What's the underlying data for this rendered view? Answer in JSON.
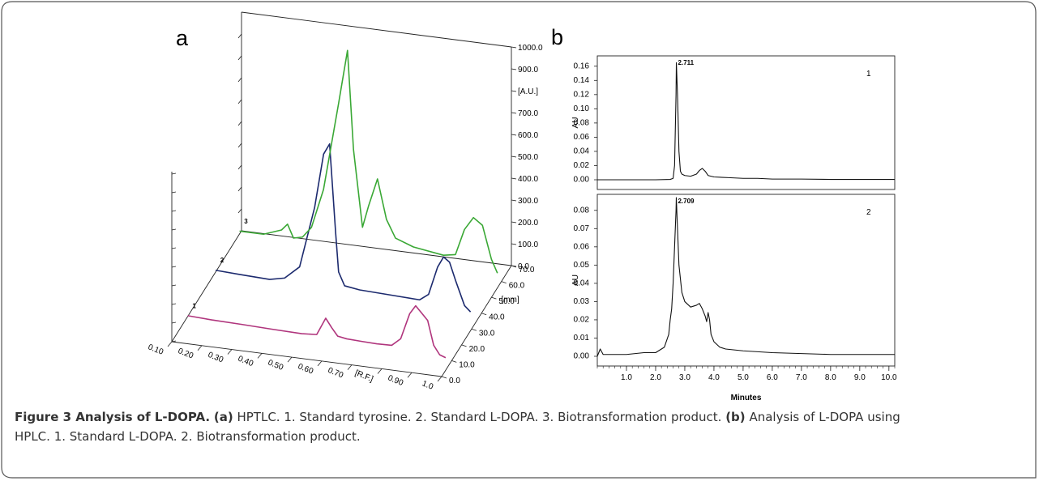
{
  "panel_a_label": "a",
  "panel_b_label": "b",
  "caption": {
    "figure_title": "Figure 3 Analysis of L-DOPA.",
    "a_ref": "(a)",
    "a_text": "HPTLC. 1. Standard tyrosine. 2. Standard L-DOPA. 3. Biotransformation product.",
    "b_ref": "(b)",
    "b_text_1": "Analysis of L-DOPA using",
    "b_text_2": "HPLC. 1. Standard L-DOPA. 2. Biotransformation product."
  },
  "chart_data": [
    {
      "type": "line",
      "panel": "a",
      "xlabel": "[R.F.]",
      "ylabel": "[A.U.]",
      "zlabel": "[mm]",
      "x_ticks": [
        "0.10",
        "0.20",
        "0.30",
        "0.40",
        "0.50",
        "0.60",
        "0.70",
        "[R.F.]",
        "0.90",
        "1.0"
      ],
      "y_ticks": [
        "0.0",
        "100.0",
        "200.0",
        "300.0",
        "400.0",
        "500.0",
        "600.0",
        "700.0",
        "[A.U.]",
        "900.0",
        "1000.0"
      ],
      "z_ticks": [
        "0.0",
        "10.0",
        "20.0",
        "30.0",
        "40.0",
        "50.0",
        "60.0",
        "70.0"
      ],
      "z_label_axis": "[mm]",
      "xlim": [
        0.1,
        1.0
      ],
      "ylim": [
        0,
        1000
      ],
      "zlim": [
        0,
        70
      ],
      "colors": {
        "1": "#b0357d",
        "2": "#1c2a6e",
        "3": "#3aa835"
      },
      "series": [
        {
          "name": "1",
          "z": 10,
          "x": [
            0.12,
            0.2,
            0.3,
            0.4,
            0.5,
            0.55,
            0.58,
            0.6,
            0.62,
            0.65,
            0.7,
            0.75,
            0.8,
            0.83,
            0.86,
            0.88,
            0.9,
            0.92,
            0.94,
            0.96,
            0.98
          ],
          "y": [
            50,
            45,
            42,
            38,
            35,
            40,
            120,
            80,
            45,
            38,
            35,
            33,
            35,
            70,
            190,
            230,
            200,
            170,
            60,
            20,
            10
          ]
        },
        {
          "name": "2",
          "z": 38,
          "x": [
            0.12,
            0.2,
            0.3,
            0.35,
            0.4,
            0.45,
            0.48,
            0.5,
            0.52,
            0.53,
            0.55,
            0.6,
            0.7,
            0.8,
            0.83,
            0.86,
            0.88,
            0.9,
            0.92,
            0.95,
            0.97
          ],
          "y": [
            55,
            50,
            45,
            60,
            120,
            400,
            650,
            700,
            300,
            120,
            60,
            50,
            45,
            40,
            70,
            200,
            250,
            230,
            150,
            40,
            15
          ]
        },
        {
          "name": "3",
          "z": 62,
          "x": [
            0.12,
            0.2,
            0.26,
            0.28,
            0.3,
            0.33,
            0.36,
            0.4,
            0.45,
            0.48,
            0.5,
            0.53,
            0.55,
            0.58,
            0.61,
            0.64,
            0.7,
            0.8,
            0.84,
            0.87,
            0.9,
            0.93,
            0.96,
            0.98
          ],
          "y": [
            60,
            60,
            90,
            120,
            60,
            70,
            120,
            300,
            700,
            950,
            500,
            150,
            250,
            380,
            200,
            120,
            90,
            70,
            80,
            200,
            260,
            230,
            80,
            20
          ]
        }
      ],
      "series_labels": [
        "1",
        "2",
        "3"
      ]
    },
    {
      "type": "line",
      "panel": "b-1",
      "ylabel": "AU",
      "y_ticks": [
        "0.00",
        "0.02",
        "0.04",
        "0.06",
        "0.08",
        "0.10",
        "0.12",
        "0.14",
        "0.16"
      ],
      "ylim": [
        0,
        0.17
      ],
      "xlim": [
        0,
        10.2
      ],
      "series": [
        {
          "name": "1",
          "x": [
            0,
            1.0,
            2.0,
            2.5,
            2.6,
            2.65,
            2.7,
            2.711,
            2.75,
            2.8,
            2.85,
            2.9,
            3.0,
            3.2,
            3.4,
            3.5,
            3.6,
            3.7,
            3.8,
            4.0,
            4.5,
            5.0,
            5.5,
            6.0,
            7.0,
            8.0,
            9.0,
            10.2
          ],
          "y": [
            0.0,
            0.0,
            0.0,
            0.0005,
            0.002,
            0.02,
            0.12,
            0.165,
            0.12,
            0.04,
            0.012,
            0.008,
            0.006,
            0.005,
            0.008,
            0.013,
            0.016,
            0.012,
            0.006,
            0.004,
            0.003,
            0.002,
            0.002,
            0.001,
            0.001,
            0.0005,
            0.0005,
            0.0005
          ]
        }
      ],
      "annotations": [
        {
          "x": 2.711,
          "text": "2.711"
        }
      ],
      "trace_label": "1"
    },
    {
      "type": "line",
      "panel": "b-2",
      "xlabel": "Minutes",
      "ylabel": "AU",
      "x_ticks": [
        "1.0",
        "2.0",
        "3.0",
        "4.0",
        "5.0",
        "6.0",
        "7.0",
        "8.0",
        "9.0",
        "10.0"
      ],
      "y_ticks": [
        "0.00",
        "0.01",
        "0.02",
        "0.03",
        "0.04",
        "0.05",
        "0.06",
        "0.07",
        "0.08"
      ],
      "ylim": [
        0,
        0.087
      ],
      "xlim": [
        0,
        10.2
      ],
      "series": [
        {
          "name": "2",
          "x": [
            0,
            0.1,
            0.2,
            1.0,
            1.6,
            2.0,
            2.3,
            2.45,
            2.5,
            2.55,
            2.6,
            2.65,
            2.7,
            2.709,
            2.75,
            2.8,
            2.9,
            3.0,
            3.2,
            3.4,
            3.5,
            3.6,
            3.7,
            3.75,
            3.8,
            3.85,
            3.9,
            4.0,
            4.2,
            4.4,
            5.0,
            6.0,
            7.0,
            8.0,
            9.0,
            10.2
          ],
          "y": [
            0.0,
            0.004,
            0.001,
            0.001,
            0.002,
            0.002,
            0.005,
            0.012,
            0.02,
            0.026,
            0.04,
            0.06,
            0.08,
            0.087,
            0.07,
            0.05,
            0.035,
            0.03,
            0.027,
            0.028,
            0.029,
            0.026,
            0.022,
            0.019,
            0.024,
            0.02,
            0.012,
            0.008,
            0.005,
            0.004,
            0.003,
            0.002,
            0.0015,
            0.001,
            0.001,
            0.001
          ]
        }
      ],
      "annotations": [
        {
          "x": 2.709,
          "text": "2.709"
        }
      ],
      "trace_label": "2"
    }
  ]
}
